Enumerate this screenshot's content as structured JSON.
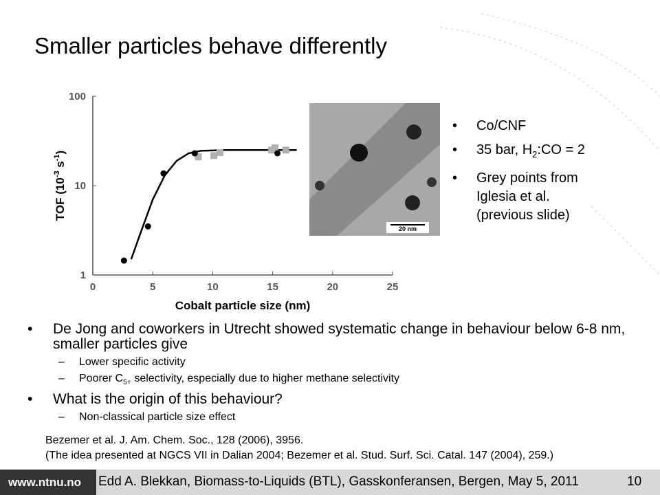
{
  "title": "Smaller particles behave differently",
  "chart_data": {
    "type": "scatter",
    "xlabel": "Cobalt particle size (nm)",
    "ylabel": [
      "TOF (10",
      "-3",
      " s",
      "-1",
      ")"
    ],
    "xlim": [
      0,
      25
    ],
    "ylim": [
      1,
      100
    ],
    "xticks": [
      0,
      5,
      10,
      15,
      20,
      25
    ],
    "yticks": [
      1,
      10,
      100
    ],
    "log_y": true,
    "series": [
      {
        "marker": "line",
        "color": "#000000",
        "x": [
          3.2,
          4,
          5,
          6,
          7,
          8,
          9,
          11,
          13,
          17
        ],
        "values": [
          1.5,
          3,
          7,
          13,
          19,
          23,
          24.5,
          25,
          25,
          25
        ]
      },
      {
        "marker": "square",
        "color": "#b0b0b0",
        "x": [
          8.8,
          10.1,
          10.6,
          14.9,
          15.2,
          16.1
        ],
        "values": [
          21,
          21.7,
          23.4,
          25,
          26.5,
          25
        ]
      },
      {
        "marker": "circle",
        "color": "#000000",
        "x": [
          2.6,
          4.6,
          5.9,
          8.5,
          15.4
        ],
        "values": [
          1.45,
          3.5,
          13.7,
          23,
          23
        ]
      }
    ]
  },
  "image_scale": "20 nm",
  "right_bullets": [
    [
      "Co/CNF"
    ],
    [
      "35 bar, H",
      "2",
      ":CO = 2"
    ],
    [
      "Grey points from Iglesia et al. (previous slide)"
    ]
  ],
  "bullets": [
    {
      "text": [
        "De Jong and coworkers in Utrecht showed  systematic change in behaviour below 6-8 nm, smaller particles give"
      ],
      "sub": [
        [
          "Lower specific activity"
        ],
        [
          "Poorer C",
          "5+",
          " selectivity, especially due to higher methane selectivity"
        ]
      ]
    },
    {
      "text": [
        "What is the origin of this behaviour?"
      ],
      "sub": [
        [
          "Non-classical particle size effect"
        ]
      ]
    }
  ],
  "references": [
    "Bezemer et al. J. Am. Chem. Soc., 128 (2006), 3956.",
    "(The idea presented at NGCS VII in  Dalian 2004; Bezemer et al. Stud. Surf. Sci. Catal. 147 (2004), 259.)"
  ],
  "footer": {
    "site": "www.ntnu.no",
    "text": "Edd A. Blekkan, Biomass-to-Liquids (BTL), Gasskonferansen, Bergen, May 5, 2011",
    "page": "10"
  }
}
